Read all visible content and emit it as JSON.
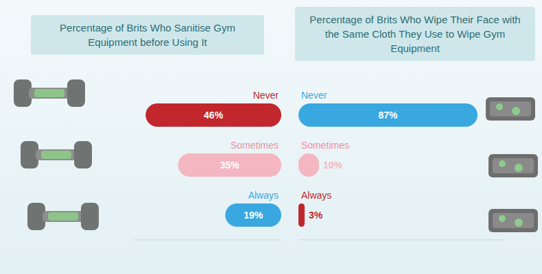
{
  "chart_data": [
    {
      "type": "bar",
      "title": "Percentage of Brits Who Sanitise Gym Equipment before Using It",
      "orientation": "horizontal",
      "categories": [
        "Never",
        "Sometimes",
        "Always"
      ],
      "values": [
        46,
        35,
        19
      ],
      "value_labels": [
        "46%",
        "35%",
        "19%"
      ],
      "colors": [
        "#c1272d",
        "#f4b6c0",
        "#3aa8e0"
      ],
      "xlim": [
        0,
        50
      ],
      "tick_labels": false,
      "data_labels": true
    },
    {
      "type": "bar",
      "title": "Percentage of Brits Who Wipe Their Face with the Same Cloth They Use to Wipe Gym Equipment",
      "orientation": "horizontal",
      "categories": [
        "Never",
        "Sometimes",
        "Always"
      ],
      "values": [
        87,
        10,
        3
      ],
      "value_labels": [
        "87%",
        "10%",
        "3%"
      ],
      "colors": [
        "#3aa8e0",
        "#f4b6c0",
        "#c1272d"
      ],
      "xlim": [
        0,
        100
      ],
      "tick_labels": false,
      "data_labels": true
    }
  ]
}
